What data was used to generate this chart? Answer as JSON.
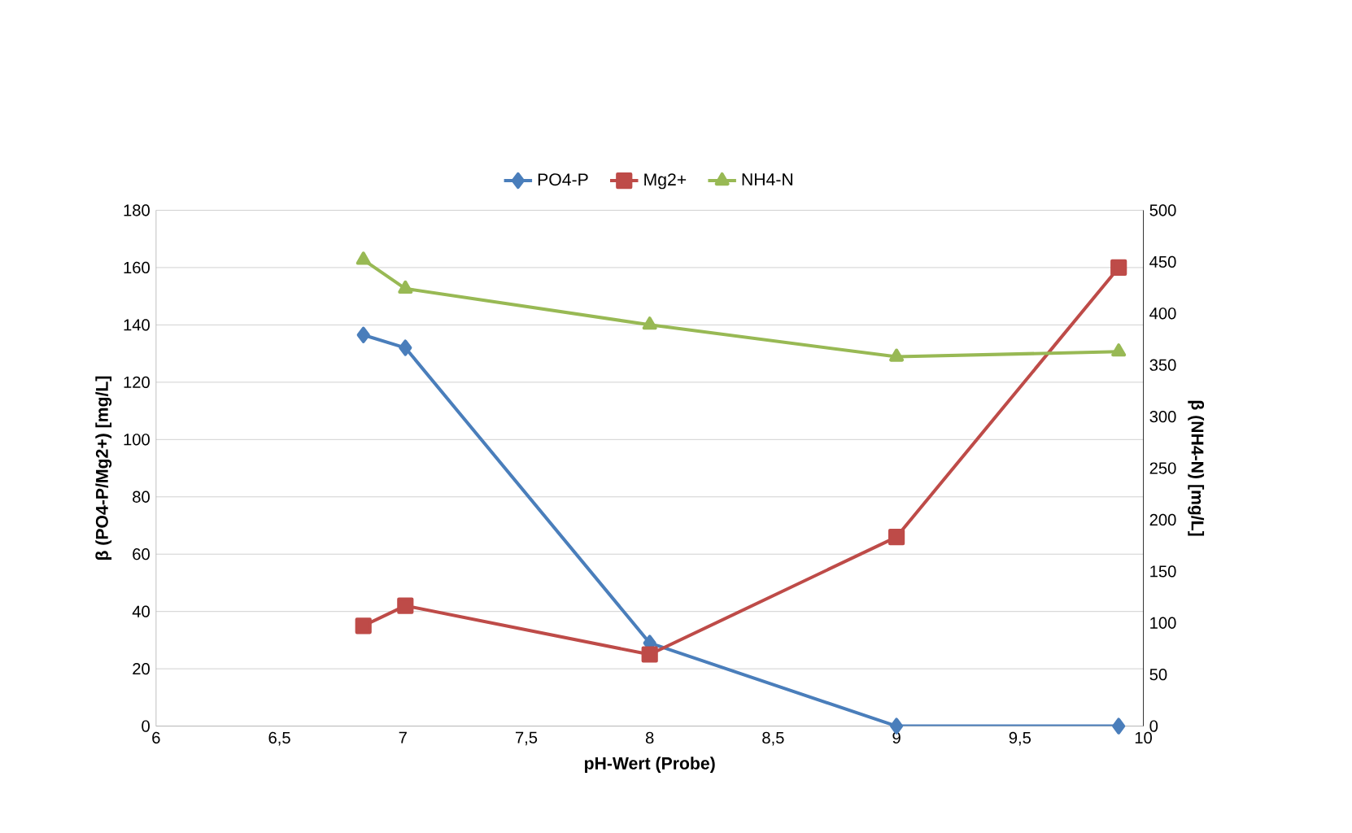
{
  "chart_data": {
    "type": "line",
    "xlabel": "pH-Wert (Probe)",
    "ylabel": "β (PO4-P/Mg2+) [mg/L]",
    "y2label": "β (NH4-N) [mg/L]",
    "x": [
      6.84,
      7.01,
      8,
      9,
      9.9
    ],
    "xlim": [
      6,
      10
    ],
    "xticks": [
      6,
      {
        "value": 6.5,
        "label": "6,5"
      },
      7,
      {
        "value": 7.5,
        "label": "7,5"
      },
      8,
      {
        "value": 8.5,
        "label": "8,5"
      },
      9,
      {
        "value": 9.5,
        "label": "9,5"
      },
      10
    ],
    "ylim": [
      0,
      180
    ],
    "yticks": [
      0,
      20,
      40,
      60,
      80,
      100,
      120,
      140,
      160,
      180
    ],
    "y2lim": [
      0,
      500
    ],
    "y2ticks": [
      0,
      50,
      100,
      150,
      200,
      250,
      300,
      350,
      400,
      450,
      500
    ],
    "series": [
      {
        "name": "PO4-P",
        "color": "#4a7ebb",
        "marker": "diamond",
        "values": [
          136.5,
          132,
          29,
          0,
          0
        ]
      },
      {
        "name": "Mg2+",
        "color": "#be4b48",
        "marker": "square",
        "values": [
          35,
          42,
          25,
          66,
          160
        ]
      },
      {
        "name": "NH4-N",
        "color": "#98b954",
        "marker": "triangle",
        "axis": "y2",
        "values": [
          452,
          424,
          389,
          358,
          363
        ]
      }
    ],
    "grid": "y",
    "legend": "top"
  }
}
